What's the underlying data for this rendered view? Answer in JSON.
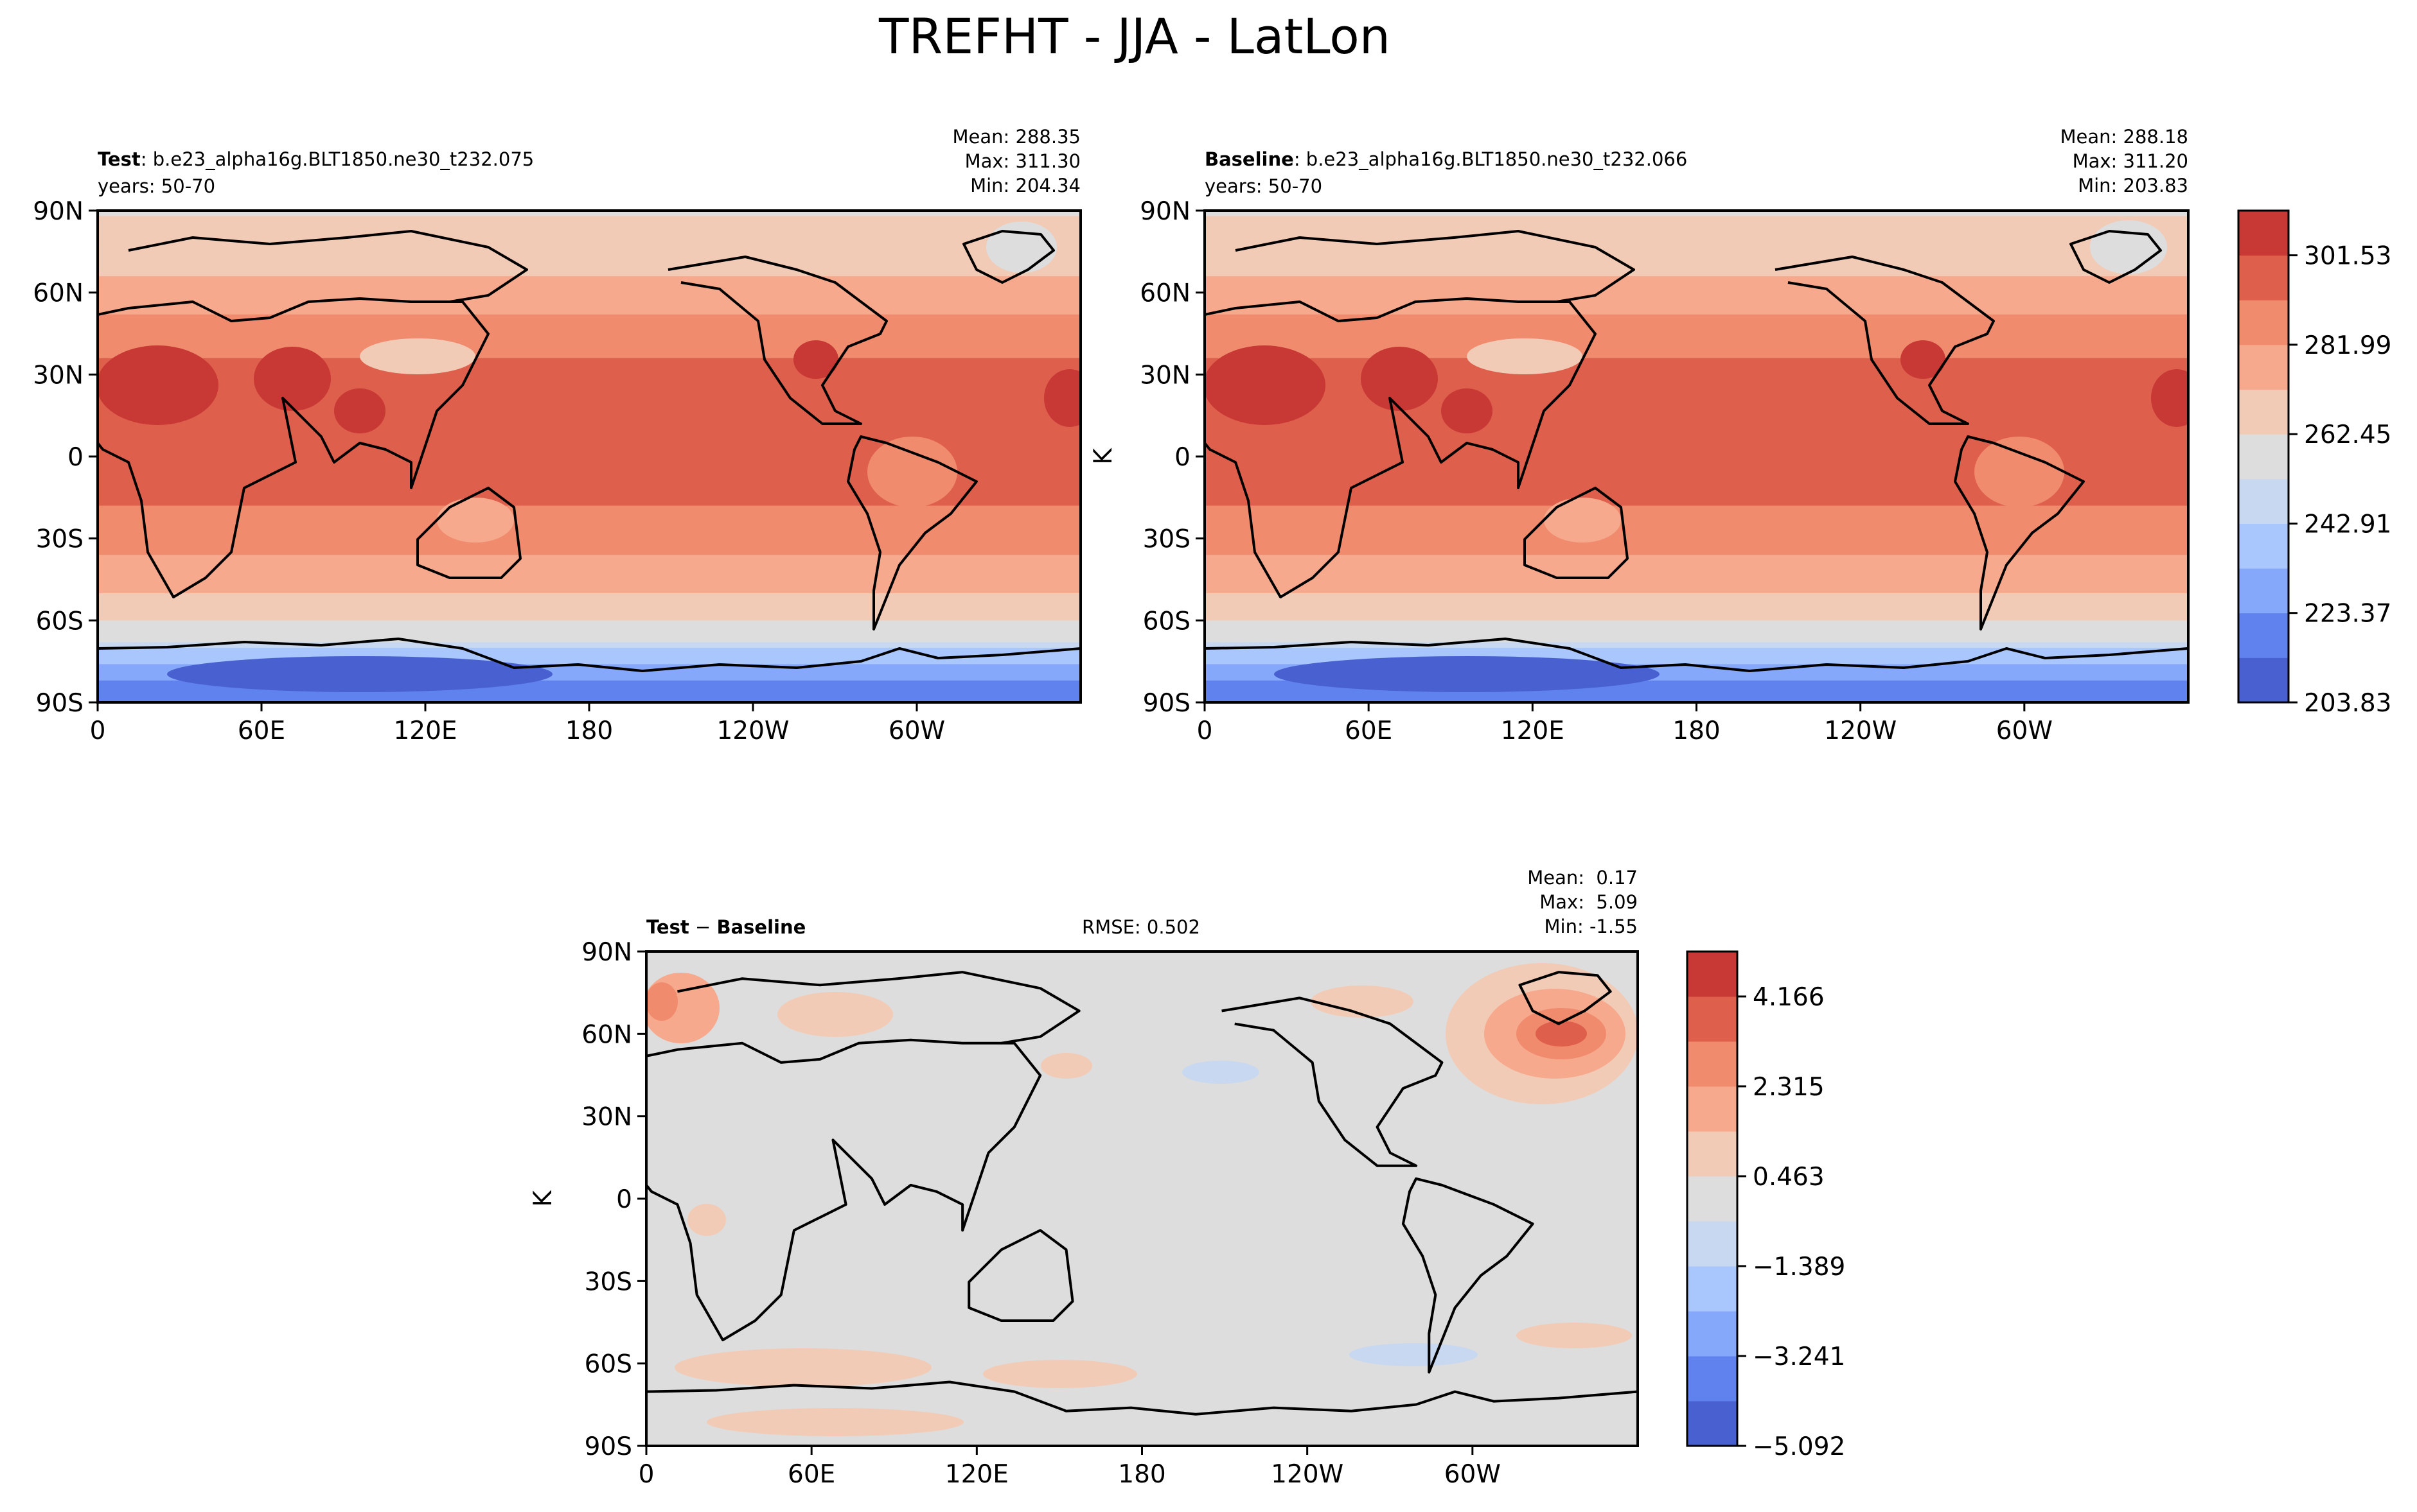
{
  "figure": {
    "title": "TREFHT - JJA - LatLon"
  },
  "chart_data": [
    {
      "type": "heatmap",
      "panel": "test",
      "label_bold": "Test",
      "label_rest": ": b.e23_alpha16g.BLT1850.ne30_t232.075",
      "years": "years: 50-70",
      "stats": [
        "Mean: 288.35",
        "Max: 311.30",
        "Min: 204.34"
      ],
      "mean": 288.35,
      "max": 311.3,
      "min": 204.34,
      "units": "K",
      "xticks": [
        "0",
        "60E",
        "120E",
        "180",
        "120W",
        "60W"
      ],
      "yticks": [
        "90N",
        "60N",
        "30N",
        "0",
        "30S",
        "60S",
        "90S"
      ],
      "xlim": [
        0,
        360
      ],
      "ylim": [
        -90,
        90
      ],
      "zonal_profile": {
        "lat": [
          90,
          70,
          55,
          45,
          35,
          20,
          0,
          -15,
          -30,
          -45,
          -55,
          -65,
          -72,
          -80,
          -90
        ],
        "value": [
          262,
          270,
          280,
          285,
          292,
          298,
          298,
          294,
          285,
          276,
          268,
          258,
          240,
          225,
          215
        ]
      }
    },
    {
      "type": "heatmap",
      "panel": "baseline",
      "label_bold": "Baseline",
      "label_rest": ": b.e23_alpha16g.BLT1850.ne30_t232.066",
      "years": "years: 50-70",
      "stats": [
        "Mean: 288.18",
        "Max: 311.20",
        "Min: 203.83"
      ],
      "mean": 288.18,
      "max": 311.2,
      "min": 203.83,
      "units": "K",
      "xticks": [
        "0",
        "60E",
        "120E",
        "180",
        "120W",
        "60W"
      ],
      "yticks": [
        "90N",
        "60N",
        "30N",
        "0",
        "30S",
        "60S",
        "90S"
      ],
      "xlim": [
        0,
        360
      ],
      "ylim": [
        -90,
        90
      ],
      "colorbar": {
        "ticks": [
          "203.83",
          "223.37",
          "242.91",
          "262.45",
          "281.99",
          "301.53"
        ],
        "levels": [
          203.83,
          213.6,
          223.37,
          233.14,
          242.91,
          252.68,
          262.45,
          272.22,
          281.99,
          291.76,
          301.53,
          311.3
        ],
        "colors": [
          "#4860d0",
          "#5f82ee",
          "#85a8fb",
          "#a9c6fd",
          "#c8d8f0",
          "#dddddd",
          "#f2cbb7",
          "#f6a98c",
          "#f08b6e",
          "#de604c",
          "#c83834"
        ]
      }
    },
    {
      "type": "heatmap",
      "panel": "difference",
      "label_bold_1": "Test",
      "label_minus": " − ",
      "label_bold_2": "Baseline",
      "rmse": "RMSE: 0.502",
      "stats": [
        "Mean:  0.17",
        "Max:  5.09",
        "Min: -1.55"
      ],
      "mean": 0.17,
      "max": 5.09,
      "min": -1.55,
      "units": "K",
      "xticks": [
        "0",
        "60E",
        "120E",
        "180",
        "120W",
        "60W"
      ],
      "yticks": [
        "90N",
        "60N",
        "30N",
        "0",
        "30S",
        "60S",
        "90S"
      ],
      "xlim": [
        0,
        360
      ],
      "ylim": [
        -90,
        90
      ],
      "colorbar": {
        "ticks": [
          "−5.092",
          "−3.241",
          "−1.389",
          "0.463",
          "2.315",
          "4.166"
        ],
        "levels": [
          -5.092,
          -4.166,
          -3.241,
          -2.315,
          -1.389,
          -0.463,
          0.463,
          1.389,
          2.315,
          3.241,
          4.166,
          5.092
        ],
        "colors": [
          "#4860d0",
          "#5f82ee",
          "#85a8fb",
          "#a9c6fd",
          "#c8d8f0",
          "#dddddd",
          "#f2cbb7",
          "#f6a98c",
          "#f08b6e",
          "#de604c",
          "#c83834"
        ]
      }
    }
  ]
}
